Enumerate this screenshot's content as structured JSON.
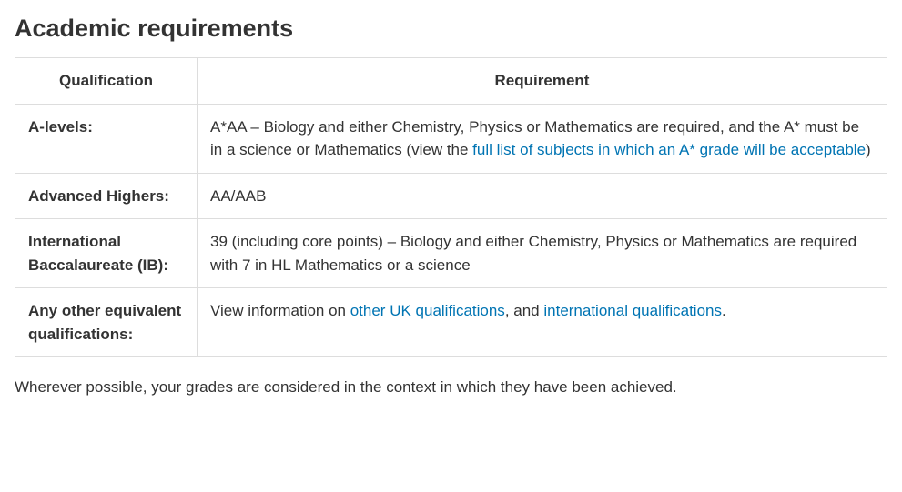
{
  "heading": "Academic requirements",
  "columns": {
    "qualification": "Qualification",
    "requirement": "Requirement"
  },
  "rows": {
    "alevels": {
      "label": "A-levels:",
      "text_before": "A*AA – Biology and either Chemistry, Physics or Mathematics are required, and the A* must be in a science or Mathematics (view the ",
      "link_text": "full list of subjects in which an A* grade will be acceptable",
      "text_after": ")"
    },
    "advanced_highers": {
      "label": "Advanced Highers:",
      "value": "AA/AAB"
    },
    "ib": {
      "label": "International Baccalaureate (IB):",
      "value": "39 (including core points) – Biology and either Chemistry, Physics or Mathematics are required with 7 in HL Mathematics or a science"
    },
    "other": {
      "label": "Any other equivalent qualifications:",
      "text_before": " View information on ",
      "link1_text": "other UK qualifications",
      "mid": ", and ",
      "link2_text": "international qualifications",
      "text_after": "."
    }
  },
  "footnote": "Wherever possible, your grades are considered in the context in which they have been achieved.",
  "link_color": "#0074b3"
}
